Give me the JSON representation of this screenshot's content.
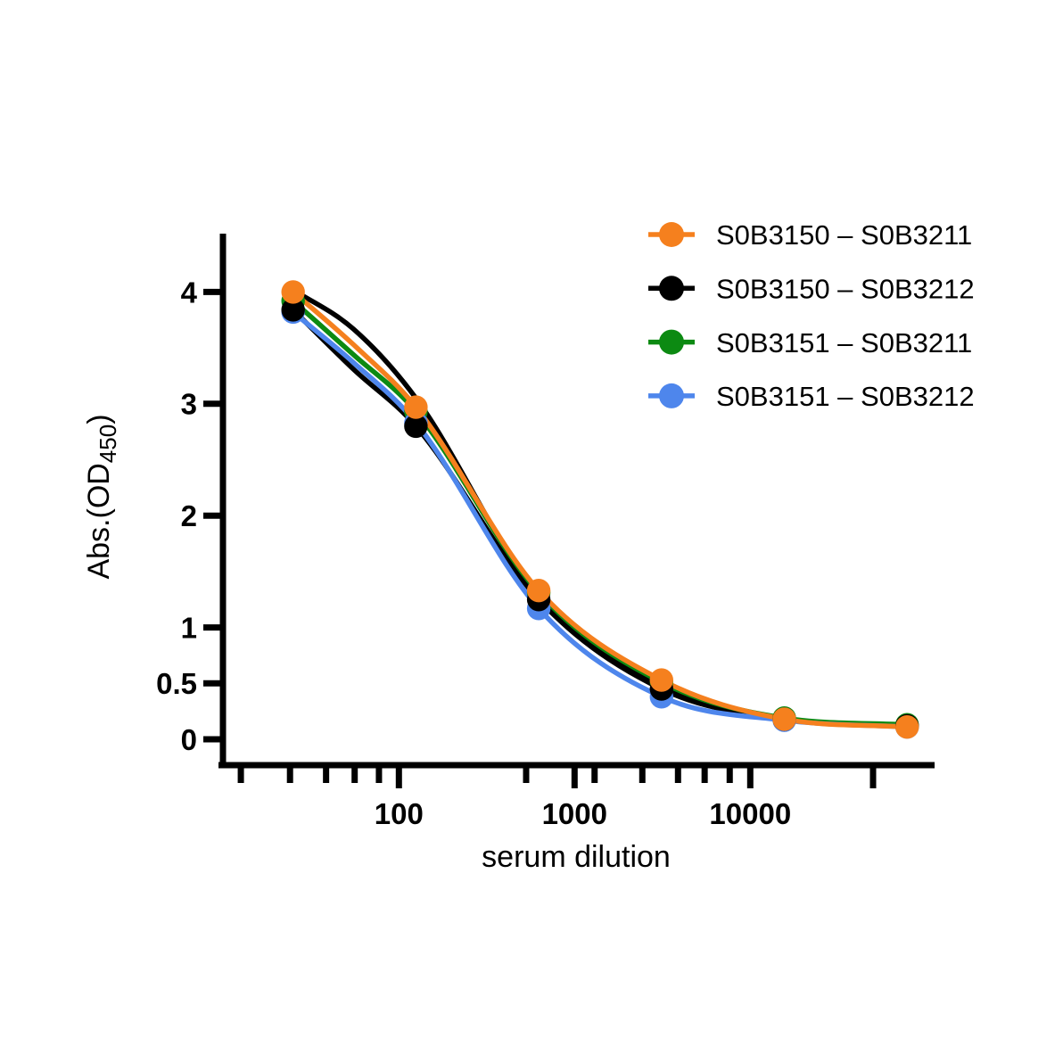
{
  "figure": {
    "background": "#ffffff",
    "text_color": "#000000"
  },
  "chart_data": {
    "type": "line",
    "title": "",
    "xlabel": "serum dilution",
    "ylabel": {
      "prefix": "Abs.(OD",
      "subscript": "450",
      "suffix": ")"
    },
    "x_scale": "log",
    "y_scale": "linear",
    "ylim": [
      0,
      4.5
    ],
    "xlim": [
      15,
      110000
    ],
    "grid": false,
    "legend_position": "top-right",
    "x": [
      25,
      125,
      625,
      3125,
      15625,
      78125
    ],
    "y_ticks": [
      {
        "value": 0,
        "label": "0"
      },
      {
        "value": 0.5,
        "label": "0.5"
      },
      {
        "value": 1,
        "label": "1"
      },
      {
        "value": 2,
        "label": "2"
      },
      {
        "value": 3,
        "label": "3"
      },
      {
        "value": 4,
        "label": "4"
      }
    ],
    "x_ticks_major": [
      {
        "value": 100,
        "label": "100"
      },
      {
        "value": 1000,
        "label": "1000"
      },
      {
        "value": 10000,
        "label": "10000"
      },
      {
        "value": 50000,
        "label": ""
      }
    ],
    "x_ticks_minor": [
      12.6,
      24,
      38.5,
      56,
      77,
      530,
      1300,
      2430,
      3880,
      5500,
      7640
    ],
    "series": [
      {
        "name": "S0B3150 – S0B3211",
        "color": "#F5801E",
        "values": [
          4.0,
          2.97,
          1.33,
          0.53,
          0.18,
          0.11
        ],
        "curve_hint": {
          "x": 55,
          "od": 3.53
        }
      },
      {
        "name": "S0B3150 – S0B3212",
        "color": "#000000",
        "values": [
          3.84,
          2.8,
          1.25,
          0.45,
          0.18,
          0.12
        ],
        "curve_hint": {
          "x": 55,
          "od": 3.31
        }
      },
      {
        "name": "S0B3151 – S0B3211",
        "color": "#0C8A12",
        "values": [
          3.92,
          2.93,
          1.31,
          0.51,
          0.19,
          0.13
        ],
        "curve_hint": {
          "x": 55,
          "od": 3.44
        }
      },
      {
        "name": "S0B3151 – S0B3212",
        "color": "#4E86EC",
        "values": [
          3.82,
          2.83,
          1.17,
          0.38,
          0.17,
          0.11
        ],
        "curve_hint": {
          "x": 55,
          "od": 3.37
        }
      }
    ],
    "extra_black_fit_line": {
      "color": "#000000",
      "points": [
        [
          25,
          4.02
        ],
        [
          55,
          3.67
        ],
        [
          125,
          3.05
        ],
        [
          625,
          1.28
        ],
        [
          3125,
          0.47
        ],
        [
          15625,
          0.185
        ],
        [
          78125,
          0.125
        ]
      ]
    }
  }
}
